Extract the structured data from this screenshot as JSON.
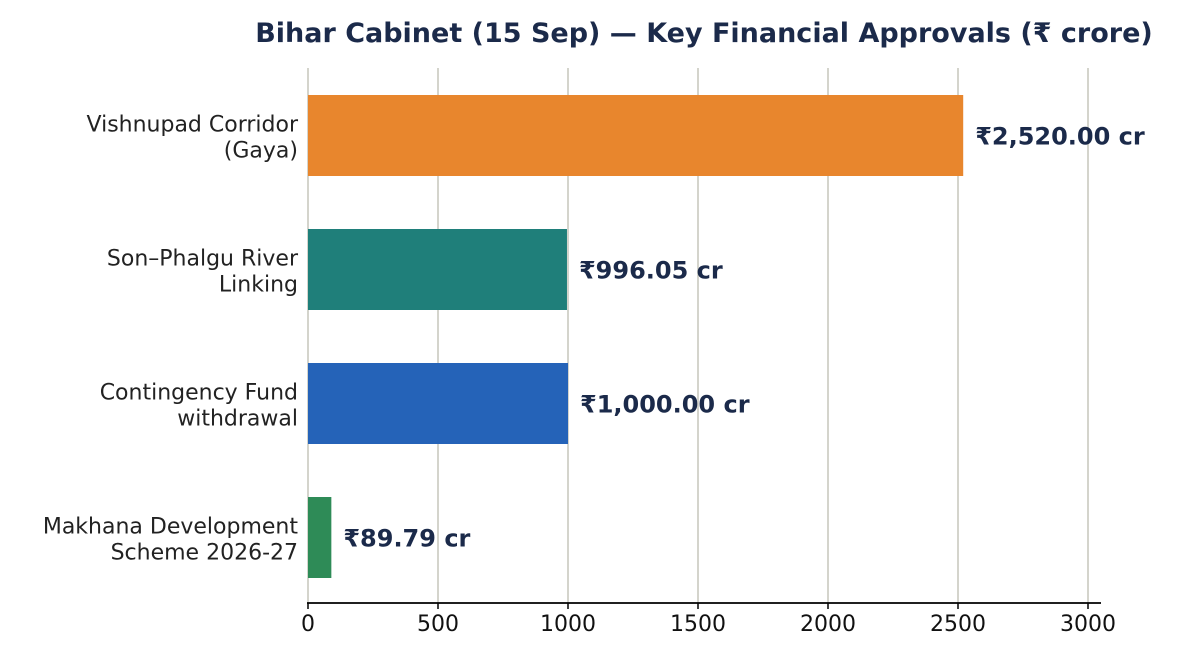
{
  "chart_data": {
    "type": "bar",
    "orientation": "horizontal",
    "title": "Bihar Cabinet (15 Sep) — Key Financial Approvals (₹ crore)",
    "xlabel": "",
    "ylabel": "",
    "xlim": [
      0,
      3050
    ],
    "x_ticks": [
      0,
      500,
      1000,
      1500,
      2000,
      2500,
      3000
    ],
    "grid": "vertical",
    "categories": [
      [
        "Vishnupad Corridor",
        "(Gaya)"
      ],
      [
        "Son–Phalgu River",
        "Linking"
      ],
      [
        "Contingency Fund",
        "withdrawal"
      ],
      [
        "Makhana Development",
        "Scheme 2026-27"
      ]
    ],
    "values": [
      2520.0,
      996.05,
      1000.0,
      89.79
    ],
    "data_labels": [
      "₹2,520.00 cr",
      "₹996.05 cr",
      "₹1,000.00 cr",
      "₹89.79 cr"
    ],
    "colors": [
      "#e8862d",
      "#1f7f7a",
      "#2563b8",
      "#2e8b57"
    ]
  },
  "style": {
    "title_color": "#1b2a4a",
    "label_color": "#1b2a4a",
    "category_color": "#222222",
    "grid_color": "#d4d4cc",
    "axis_color": "#000000"
  }
}
